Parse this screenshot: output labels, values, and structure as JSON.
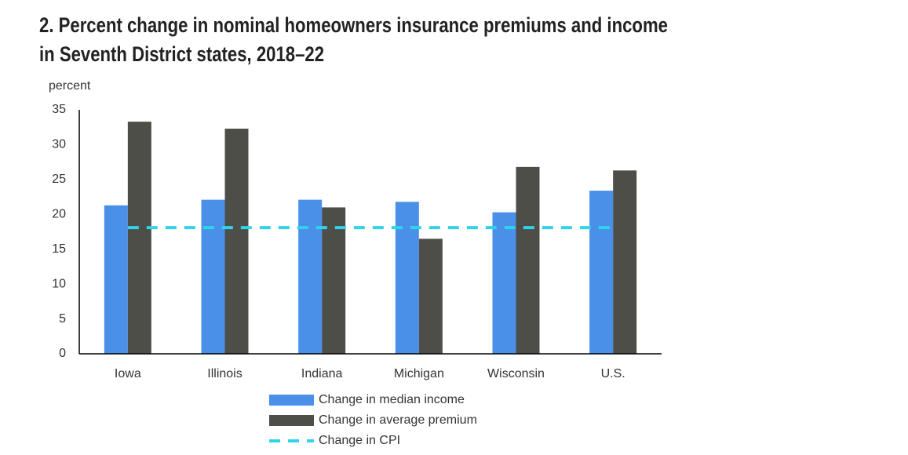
{
  "chart_data": {
    "type": "bar",
    "title": "2. Percent change in nominal homeowners insurance premiums and income in Seventh District states, 2018–22",
    "y_label": "percent",
    "categories": [
      "Iowa",
      "Illinois",
      "Indiana",
      "Michigan",
      "Wisconsin",
      "U.S."
    ],
    "series": [
      {
        "name": "Change in median income",
        "color": "#4a90e8",
        "values": [
          21.3,
          22.1,
          22.1,
          21.8,
          20.3,
          23.4
        ]
      },
      {
        "name": "Change in average premium",
        "color": "#4e4e49",
        "values": [
          33.3,
          32.3,
          21.0,
          16.5,
          26.8,
          26.3
        ]
      },
      {
        "name": "Change in CPI",
        "color": "#2fd4ea",
        "type": "line",
        "values": [
          18.1,
          18.1,
          18.1,
          18.1,
          18.1,
          18.1
        ]
      }
    ],
    "ylim": [
      0,
      35
    ],
    "yticks": [
      0,
      5,
      10,
      15,
      20,
      25,
      30,
      35
    ],
    "grid": false
  }
}
